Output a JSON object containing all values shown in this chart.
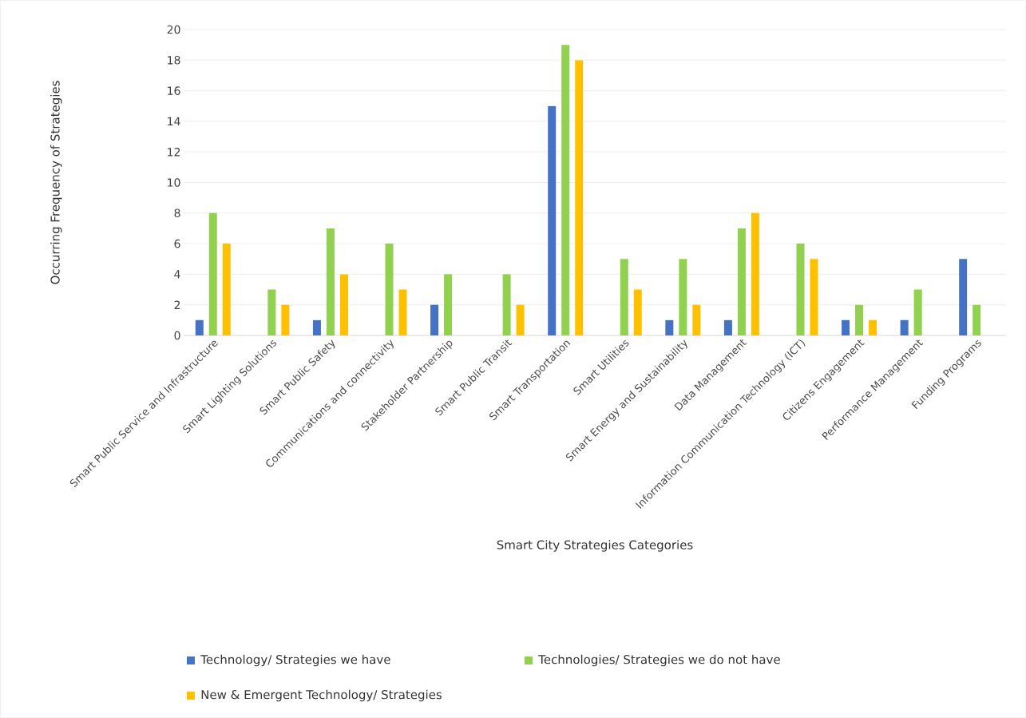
{
  "chart_data": {
    "type": "bar",
    "xlabel": "Smart City Strategies Categories",
    "ylabel": "Occurring Frequency of Strategies",
    "categories": [
      "Smart Public Service and Infrastructure",
      "Smart Lighting Solutions",
      "Smart Public Safety",
      "Communications and connectivity",
      "Stakeholder Partnership",
      "Smart Public Transit",
      "Smart Transportation",
      "Smart Utilities",
      "Smart Energy and Sustainability",
      "Data Management",
      "Information Communication Technology (ICT)",
      "Citizens Engagement",
      "Performance Management",
      "Funding Programs"
    ],
    "series": [
      {
        "name": "Technology/ Strategies we have",
        "color": "#4472c4",
        "values": [
          1,
          null,
          1,
          null,
          2,
          null,
          15,
          null,
          1,
          1,
          null,
          1,
          1,
          5
        ]
      },
      {
        "name": "Technologies/ Strategies we do not have",
        "color": "#92d050",
        "values": [
          8,
          3,
          7,
          6,
          4,
          4,
          19,
          5,
          5,
          7,
          6,
          2,
          3,
          2
        ]
      },
      {
        "name": "New & Emergent Technology/ Strategies",
        "color": "#ffc000",
        "values": [
          6,
          2,
          4,
          3,
          null,
          2,
          18,
          3,
          2,
          8,
          5,
          1,
          null,
          null
        ]
      }
    ],
    "ylim": [
      0,
      20
    ],
    "yticks": [
      0,
      2,
      4,
      6,
      8,
      10,
      12,
      14,
      16,
      18,
      20
    ],
    "grid": "y",
    "legend": "bottom"
  }
}
